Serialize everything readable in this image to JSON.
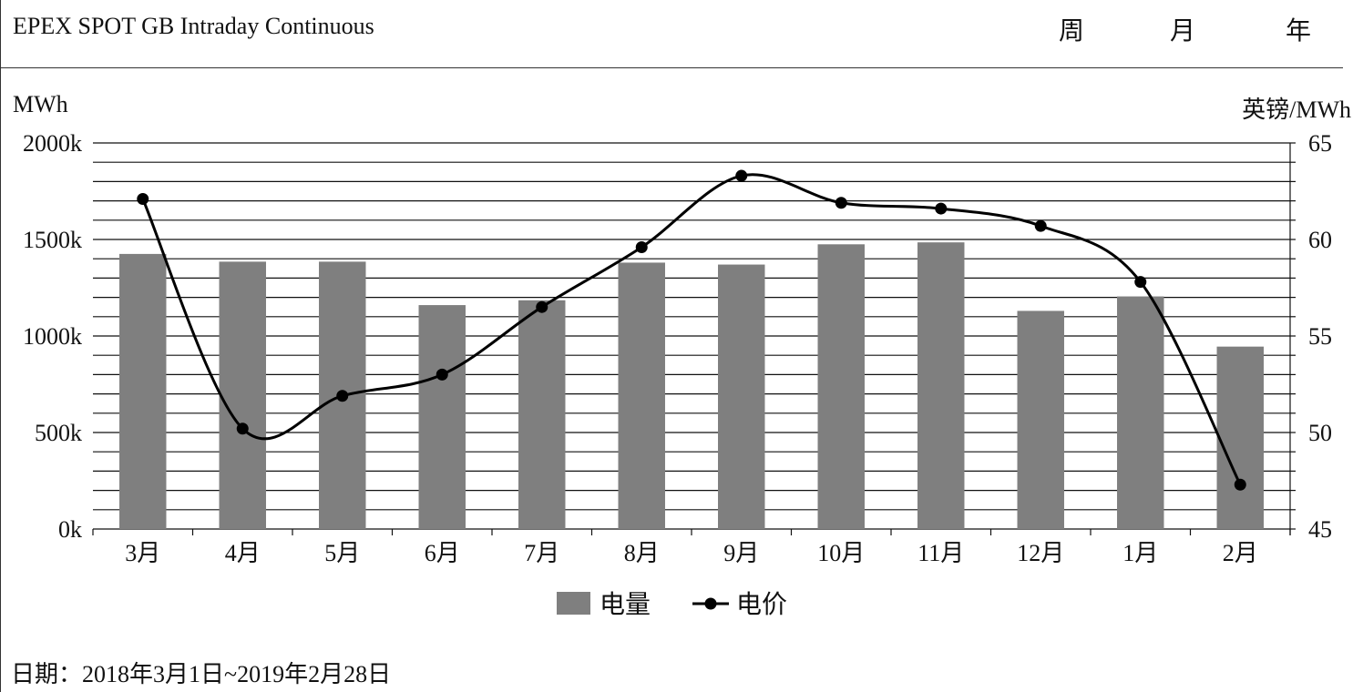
{
  "header": {
    "title": "EPEX SPOT GB Intraday Continuous",
    "tabs": [
      "周",
      "月",
      "年"
    ]
  },
  "footer": {
    "date_range": "日期：2018年3月1日~2019年2月28日"
  },
  "chart_data": {
    "type": "bar",
    "categories": [
      "3月",
      "4月",
      "5月",
      "6月",
      "7月",
      "8月",
      "9月",
      "10月",
      "11月",
      "12月",
      "1月",
      "2月"
    ],
    "ylabel": "MWh",
    "y2label": "英镑/MWh",
    "ylim": [
      0,
      2000
    ],
    "y2lim": [
      45,
      65
    ],
    "y_ticks": [
      "0k",
      "500k",
      "1000k",
      "1500k",
      "2000k"
    ],
    "y2_ticks": [
      "45",
      "50",
      "55",
      "60",
      "65"
    ],
    "series": [
      {
        "name": "电量",
        "type": "bar",
        "axis": "left",
        "color": "#7f7f7f",
        "values": [
          1425,
          1385,
          1385,
          1160,
          1185,
          1380,
          1370,
          1475,
          1485,
          1130,
          1205,
          945
        ]
      },
      {
        "name": "电价",
        "type": "line",
        "axis": "right",
        "color": "#000000",
        "values": [
          62.1,
          50.2,
          51.9,
          53.0,
          56.5,
          59.6,
          63.3,
          61.9,
          61.6,
          60.7,
          57.8,
          47.3
        ]
      }
    ],
    "grid": true,
    "legend_position": "bottom-center"
  }
}
